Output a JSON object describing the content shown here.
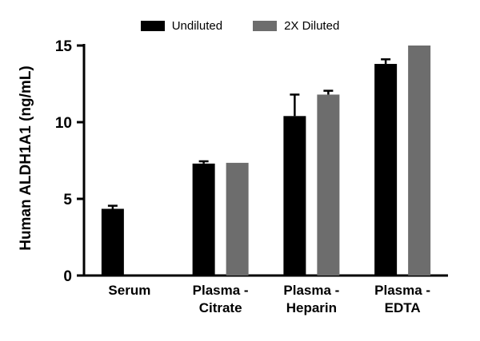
{
  "chart_data": {
    "type": "bar",
    "title": "",
    "ylabel": "Human ALDH1A1 (ng/mL)",
    "xlabel": "",
    "ylim": [
      0,
      15
    ],
    "yticks": [
      0,
      5,
      10,
      15
    ],
    "grid": false,
    "legend_position": "top",
    "categories": [
      "Serum",
      "Plasma -\nCitrate",
      "Plasma -\nHeparin",
      "Plasma -\nEDTA"
    ],
    "series": [
      {
        "name": "Undiluted",
        "color": "#000000",
        "values": [
          4.35,
          7.3,
          10.4,
          13.8
        ],
        "errors": [
          0.2,
          0.15,
          1.4,
          0.3
        ]
      },
      {
        "name": "2X Diluted",
        "color": "#6d6d6d",
        "values": [
          null,
          7.35,
          11.8,
          15.0
        ],
        "errors": [
          null,
          0,
          0.25,
          0
        ]
      }
    ]
  }
}
